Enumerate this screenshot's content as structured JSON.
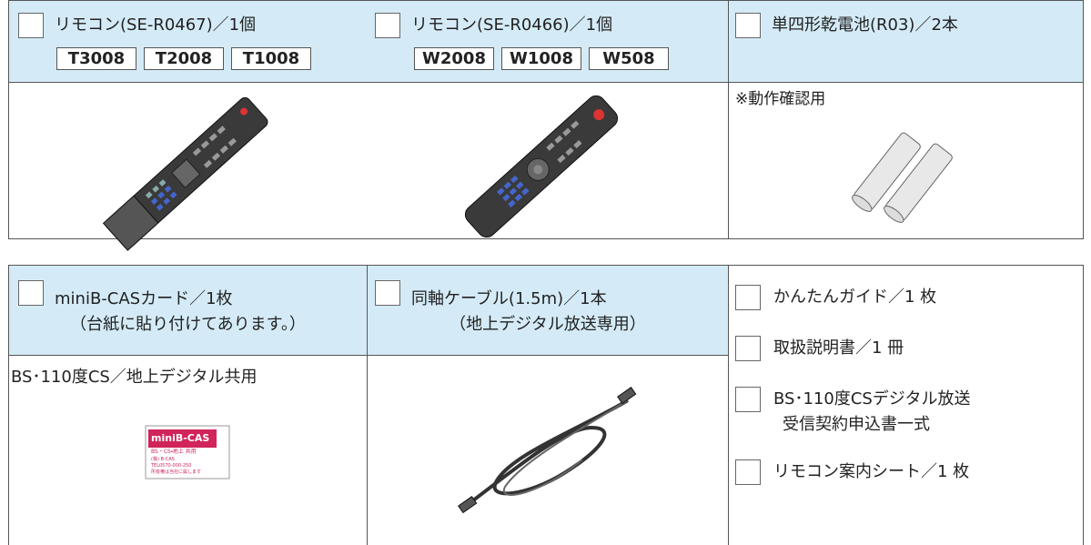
{
  "top_table": {
    "items": [
      {
        "label": "リモコン(SE-R0467)／1個",
        "models": [
          "T3008",
          "T2008",
          "T1008"
        ]
      },
      {
        "label": "リモコン(SE-R0466)／1個",
        "models": [
          "W2008",
          "W1008",
          "W508"
        ]
      },
      {
        "label": "単四形乾電池(R03)／2本",
        "note": "※動作確認用"
      }
    ]
  },
  "bottom_table": {
    "items": [
      {
        "label": "miniB-CASカード／1枚",
        "sublabel": "（台紙に貼り付けてあります。）",
        "note": "BS･110度CS／地上デジタル共用",
        "card": {
          "title": "miniB-CAS",
          "line1": "BS・CS・地上 共用",
          "line2": "(株) B-CAS",
          "line3": "TEL0570-000-250",
          "line4": "所有権は当社に属します"
        }
      },
      {
        "label": "同軸ケーブル(1.5m)／1本",
        "sublabel": "（地上デジタル放送専用）"
      }
    ],
    "list": [
      {
        "label": "かんたんガイド／1 枚"
      },
      {
        "label": "取扱説明書／1 冊"
      },
      {
        "lines": [
          "BS･110度CSデジタル放送",
          "受信契約申込書一式"
        ]
      },
      {
        "label": "リモコン案内シート／1 枚"
      }
    ]
  }
}
